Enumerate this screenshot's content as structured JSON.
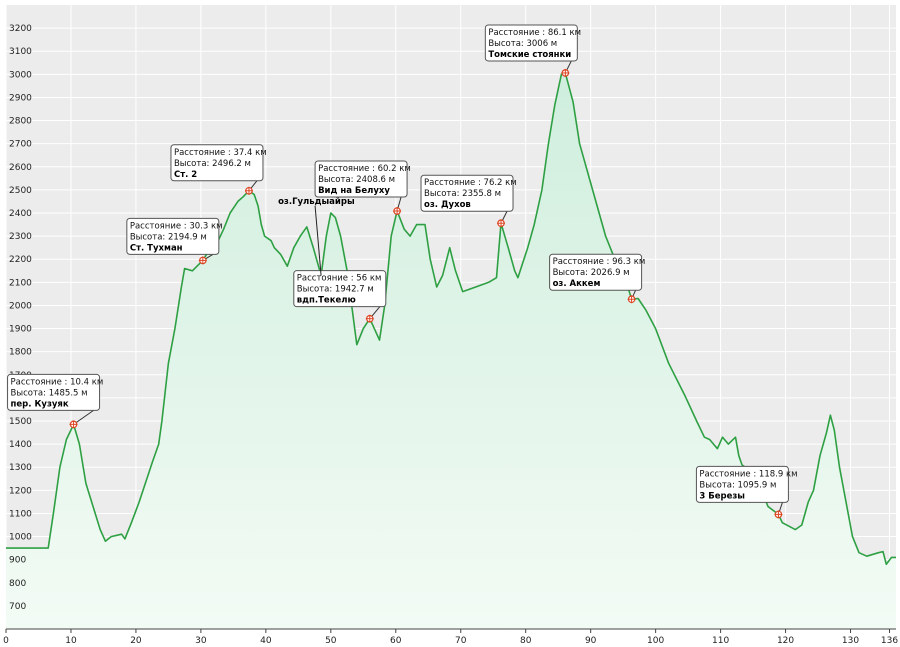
{
  "chart_data": {
    "type": "area",
    "title": "",
    "xlabel": "",
    "ylabel": "",
    "xlim": [
      0,
      137
    ],
    "ylim": [
      600,
      3300
    ],
    "grid": true,
    "x_ticks": [
      0,
      10,
      20,
      30,
      40,
      50,
      60,
      70,
      80,
      90,
      100,
      110,
      120,
      130,
      136
    ],
    "y_ticks": [
      700,
      800,
      900,
      1000,
      1100,
      1200,
      1300,
      1400,
      1500,
      1600,
      1700,
      1800,
      1900,
      2000,
      2100,
      2200,
      2300,
      2400,
      2500,
      2600,
      2700,
      2800,
      2900,
      3000,
      3100,
      3200
    ],
    "colors": {
      "line": "#2ea043",
      "fill_top": "#cfeedd",
      "fill_bottom": "#f3fbf5",
      "grid": "#ffffff",
      "background": "#ececec"
    },
    "series": [
      {
        "points": [
          [
            0,
            950
          ],
          [
            6.5,
            950
          ],
          [
            7.3,
            1100
          ],
          [
            8.3,
            1300
          ],
          [
            9.3,
            1420
          ],
          [
            10.4,
            1485
          ],
          [
            11.3,
            1400
          ],
          [
            12.3,
            1230
          ],
          [
            14.5,
            1030
          ],
          [
            15.3,
            980
          ],
          [
            16.2,
            1000
          ],
          [
            17.8,
            1010
          ],
          [
            18.3,
            990
          ],
          [
            19.3,
            1060
          ],
          [
            20.5,
            1150
          ],
          [
            22.5,
            1320
          ],
          [
            23.5,
            1400
          ],
          [
            24,
            1500
          ],
          [
            25,
            1750
          ],
          [
            26,
            1900
          ],
          [
            27,
            2080
          ],
          [
            27.5,
            2160
          ],
          [
            28.7,
            2150
          ],
          [
            29.4,
            2170
          ],
          [
            30.3,
            2195
          ],
          [
            31.5,
            2250
          ],
          [
            32.5,
            2270
          ],
          [
            33.5,
            2330
          ],
          [
            34.5,
            2400
          ],
          [
            35.7,
            2450
          ],
          [
            36.5,
            2470
          ],
          [
            37.4,
            2496
          ],
          [
            38.2,
            2480
          ],
          [
            38.8,
            2430
          ],
          [
            39.3,
            2350
          ],
          [
            39.8,
            2300
          ],
          [
            40.8,
            2280
          ],
          [
            41.3,
            2250
          ],
          [
            42.3,
            2220
          ],
          [
            43.3,
            2170
          ],
          [
            44.3,
            2250
          ],
          [
            45.3,
            2300
          ],
          [
            46.3,
            2340
          ],
          [
            47.3,
            2250
          ],
          [
            48.3,
            2150
          ],
          [
            48.5,
            2130
          ],
          [
            49.3,
            2300
          ],
          [
            50,
            2400
          ],
          [
            50.7,
            2380
          ],
          [
            51.5,
            2300
          ],
          [
            52.5,
            2150
          ],
          [
            53.3,
            1980
          ],
          [
            54,
            1830
          ],
          [
            55,
            1900
          ],
          [
            56,
            1943
          ],
          [
            56.7,
            1900
          ],
          [
            57.5,
            1850
          ],
          [
            58.3,
            2000
          ],
          [
            59.3,
            2300
          ],
          [
            60.2,
            2409
          ],
          [
            61.3,
            2330
          ],
          [
            62.2,
            2300
          ],
          [
            63.2,
            2350
          ],
          [
            64.5,
            2350
          ],
          [
            65.3,
            2200
          ],
          [
            66.3,
            2080
          ],
          [
            67.2,
            2130
          ],
          [
            68.3,
            2250
          ],
          [
            69.2,
            2150
          ],
          [
            70.3,
            2060
          ],
          [
            72.3,
            2080
          ],
          [
            74.3,
            2100
          ],
          [
            75.5,
            2120
          ],
          [
            76.2,
            2356
          ],
          [
            77.3,
            2250
          ],
          [
            78.3,
            2150
          ],
          [
            78.8,
            2120
          ],
          [
            80.3,
            2250
          ],
          [
            81.3,
            2350
          ],
          [
            82.5,
            2500
          ],
          [
            83.5,
            2700
          ],
          [
            84.5,
            2870
          ],
          [
            85.5,
            3000
          ],
          [
            86.1,
            3006
          ],
          [
            87.3,
            2880
          ],
          [
            88.3,
            2700
          ],
          [
            90.3,
            2500
          ],
          [
            92.3,
            2300
          ],
          [
            94.3,
            2160
          ],
          [
            95.5,
            2100
          ],
          [
            96.3,
            2027
          ],
          [
            97.3,
            2030
          ],
          [
            98.5,
            1980
          ],
          [
            100,
            1900
          ],
          [
            102,
            1750
          ],
          [
            104.5,
            1610
          ],
          [
            106.3,
            1500
          ],
          [
            107.5,
            1430
          ],
          [
            108.3,
            1420
          ],
          [
            109.5,
            1380
          ],
          [
            110.3,
            1430
          ],
          [
            111.2,
            1400
          ],
          [
            112.3,
            1430
          ],
          [
            112.8,
            1350
          ],
          [
            113.3,
            1310
          ],
          [
            115.3,
            1270
          ],
          [
            116.3,
            1200
          ],
          [
            117.3,
            1130
          ],
          [
            118.9,
            1096
          ],
          [
            119.5,
            1060
          ],
          [
            121.5,
            1030
          ],
          [
            122.5,
            1050
          ],
          [
            123.5,
            1150
          ],
          [
            124.3,
            1200
          ],
          [
            125.3,
            1350
          ],
          [
            126.3,
            1450
          ],
          [
            126.9,
            1525
          ],
          [
            127.5,
            1460
          ],
          [
            128.3,
            1300
          ],
          [
            129.3,
            1150
          ],
          [
            130.3,
            1000
          ],
          [
            131.3,
            930
          ],
          [
            132.5,
            915
          ],
          [
            134.3,
            930
          ],
          [
            135,
            935
          ],
          [
            135.5,
            880
          ],
          [
            136.3,
            910
          ],
          [
            137,
            910
          ]
        ]
      }
    ],
    "annotations": [
      {
        "id": "kuzyak",
        "x": 10.4,
        "y": 1485.5,
        "distance": "Расстояние : 10.4 км",
        "height": "Высота: 1485.5 м",
        "name": "пер. Кузуяк"
      },
      {
        "id": "tuhman",
        "x": 30.3,
        "y": 2194.9,
        "distance": "Расстояние : 30.3 км",
        "height": "Высота: 2194.9 м",
        "name": "Ст. Тухман"
      },
      {
        "id": "st2",
        "x": 37.4,
        "y": 2496.2,
        "distance": "Расстояние : 37.4 км",
        "height": "Высота: 2496.2 м",
        "name": "Ст. 2"
      },
      {
        "id": "tekelyu",
        "x": 56,
        "y": 1942.7,
        "distance": "Расстояние : 56 км",
        "height": "Высота: 1942.7 м",
        "name": "вдп.Текелю"
      },
      {
        "id": "beluha",
        "x": 60.2,
        "y": 2408.6,
        "distance": "Расстояние : 60.2 км",
        "height": "Высота: 2408.6 м",
        "name": "Вид на Белуху"
      },
      {
        "id": "duhov",
        "x": 76.2,
        "y": 2355.8,
        "distance": "Расстояние : 76.2 км",
        "height": "Высота: 2355.8 м",
        "name": "оз. Духов"
      },
      {
        "id": "tomsk",
        "x": 86.1,
        "y": 3006,
        "distance": "Расстояние : 86.1 км",
        "height": "Высота: 3006 м",
        "name": "Томские стоянки"
      },
      {
        "id": "akkem",
        "x": 96.3,
        "y": 2026.9,
        "distance": "Расстояние : 96.3 км",
        "height": "Высота: 2026.9 м",
        "name": "оз. Аккем"
      },
      {
        "id": "berezy",
        "x": 118.9,
        "y": 1095.9,
        "distance": "Расстояние : 118.9 км",
        "height": "Высота: 1095.9 м",
        "name": "3 Березы"
      }
    ],
    "free_labels": [
      {
        "id": "guldyayry",
        "x": 48.5,
        "y": 2130,
        "text": "оз.Гульдыайры"
      }
    ]
  }
}
